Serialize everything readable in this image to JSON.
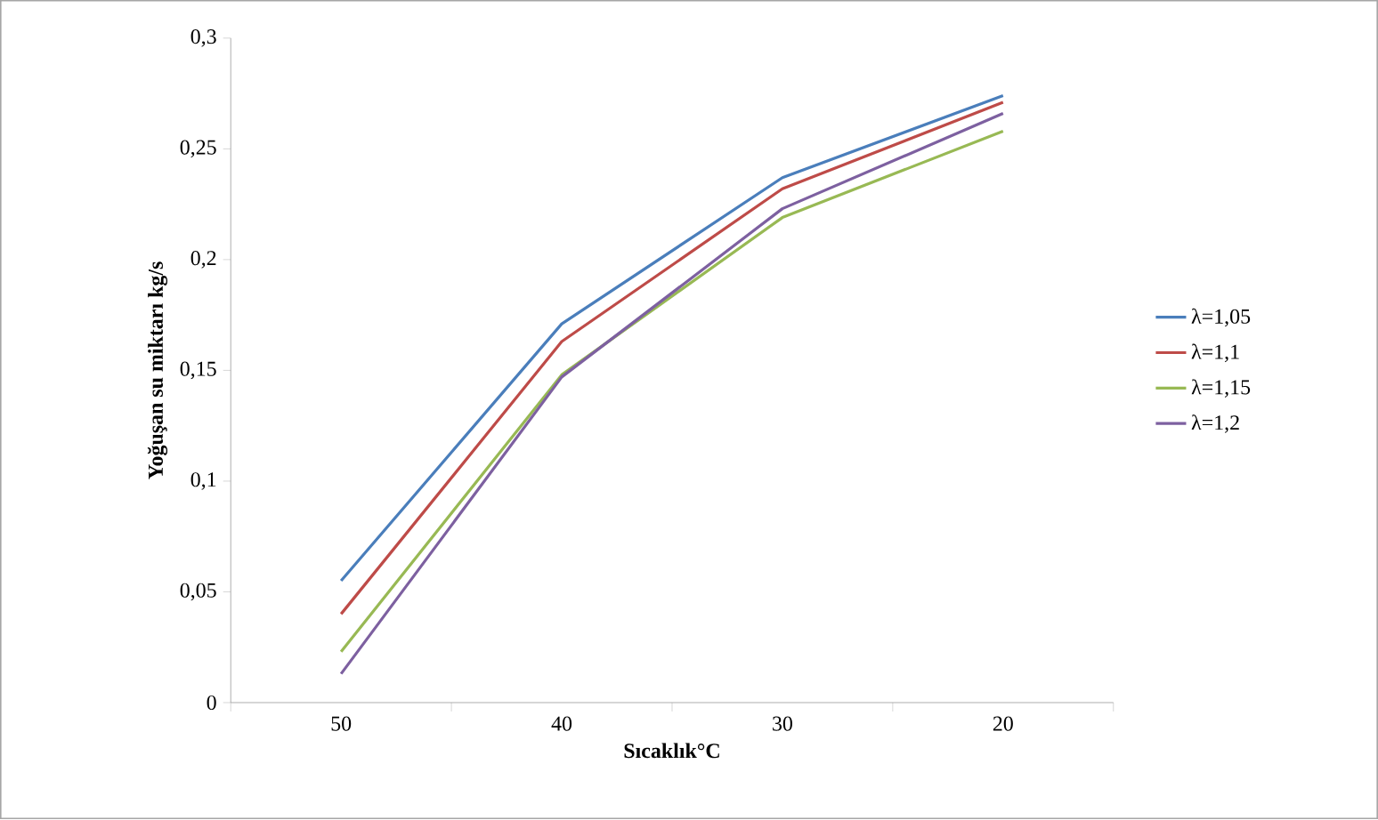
{
  "chart_data": {
    "type": "line",
    "xlabel": "Sıcaklık°C",
    "ylabel": "Yoğuşan su miktarı kg/s",
    "categories": [
      "50",
      "40",
      "30",
      "20"
    ],
    "series": [
      {
        "name": "λ=1,05",
        "color": "#4a7ebb",
        "values": [
          0.055,
          0.171,
          0.237,
          0.274
        ]
      },
      {
        "name": "λ=1,1",
        "color": "#be4b48",
        "values": [
          0.04,
          0.163,
          0.232,
          0.271
        ]
      },
      {
        "name": "λ=1,15",
        "color": "#98b954",
        "values": [
          0.023,
          0.148,
          0.219,
          0.258
        ]
      },
      {
        "name": "λ=1,2",
        "color": "#7d60a0",
        "values": [
          0.013,
          0.147,
          0.223,
          0.266
        ]
      }
    ],
    "ylim": [
      0,
      0.3
    ],
    "yticks": [
      {
        "value": 0,
        "label": "0"
      },
      {
        "value": 0.05,
        "label": "0,05"
      },
      {
        "value": 0.1,
        "label": "0,1"
      },
      {
        "value": 0.15,
        "label": "0,15"
      },
      {
        "value": 0.2,
        "label": "0,2"
      },
      {
        "value": 0.25,
        "label": "0,25"
      },
      {
        "value": 0.3,
        "label": "0,3"
      }
    ],
    "grid": false,
    "legend": "right",
    "marker": "none",
    "line_style": "solid"
  }
}
